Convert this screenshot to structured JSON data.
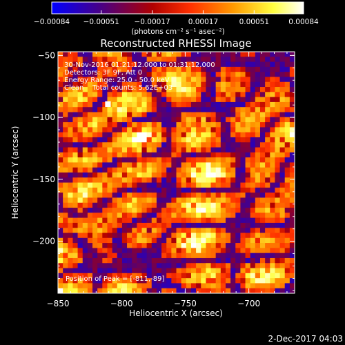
{
  "chart_data": {
    "type": "heatmap",
    "title": "Reconstructed RHESSI Image",
    "xlabel": "Heliocentric X (arcsec)",
    "ylabel": "Heliocentric Y (arcsec)",
    "x_ticks": [
      "−850",
      "−800",
      "−750",
      "−700"
    ],
    "x_tick_values": [
      -850,
      -800,
      -750,
      -700
    ],
    "y_ticks": [
      "−50",
      "−100",
      "−150",
      "−200"
    ],
    "y_tick_values": [
      -50,
      -100,
      -150,
      -200
    ],
    "xlim": [
      -850,
      -664
    ],
    "ylim": [
      -242,
      -47
    ],
    "colorbar": {
      "ticks": [
        "−0.00084",
        "−0.00051",
        "−0.00017",
        "0.00017",
        "0.00051",
        "0.00084"
      ],
      "tick_values": [
        -0.00084,
        -0.00051,
        -0.00017,
        0.00017,
        0.00051,
        0.00084
      ],
      "unit_label": "(photons cm⁻² s⁻¹ asec⁻²)",
      "range": [
        -0.00084,
        0.00084
      ],
      "colors": [
        "#0000ff",
        "#4b0082",
        "#b00000",
        "#ff3000",
        "#ff9a00",
        "#ffff40",
        "#ffffff"
      ]
    },
    "annotations": [
      "30-Nov-2016 01:21:12.000 to 01:31:12.000",
      "Detectors: 3F 9F, Att 0",
      "Energy Range: 25.0 - 50.0 keV",
      "Clean    Total counts: 5.62E+03"
    ],
    "peak_label": "Position of Peak = [-811,-89]",
    "peak": {
      "x": -811,
      "y": -89
    },
    "grid": false
  },
  "footer": {
    "date": "2-Dec-2017 04:03"
  }
}
